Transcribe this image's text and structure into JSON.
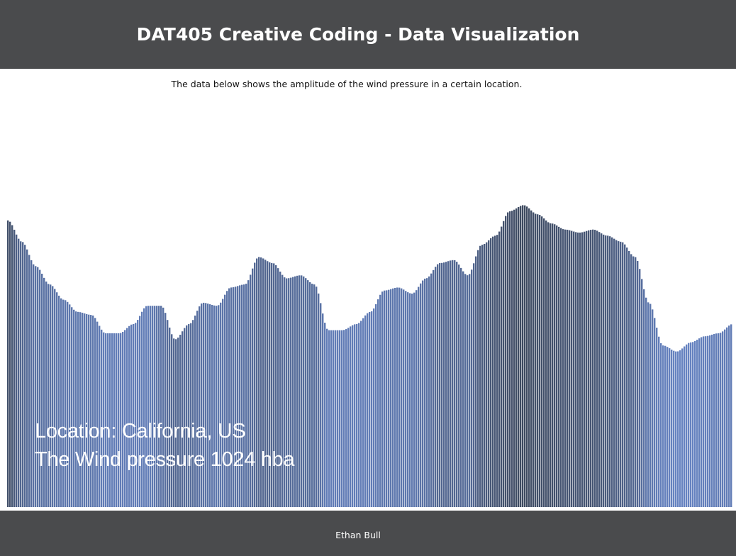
{
  "header": {
    "title": "DAT405 Creative Coding - Data Visualization"
  },
  "intro": {
    "text": "The data below shows the amplitude of the wind pressure in a certain location."
  },
  "overlay": {
    "location": "Location: California, US",
    "pressure": "The Wind pressure 1024 hba"
  },
  "footer": {
    "author": "Ethan Bull"
  },
  "colors": {
    "header_bg": "#4a4b4d",
    "footer_bg": "#4a4b4d",
    "wave_light": "#6582c0",
    "wave_dark": "#3e4a60"
  },
  "chart_data": {
    "type": "area",
    "values": [
      0.94,
      0.87,
      0.79,
      0.73,
      0.68,
      0.64,
      0.63,
      0.57,
      0.57,
      0.6,
      0.66,
      0.66,
      0.55,
      0.6,
      0.67,
      0.66,
      0.72,
      0.73,
      0.82,
      0.8,
      0.75,
      0.76,
      0.73,
      0.58,
      0.58,
      0.6,
      0.64,
      0.71,
      0.72,
      0.7,
      0.75,
      0.8,
      0.81,
      0.76,
      0.86,
      0.89,
      0.97,
      0.99,
      0.96,
      0.93,
      0.91,
      0.9,
      0.91,
      0.89,
      0.87,
      0.82,
      0.67,
      0.53,
      0.51,
      0.54,
      0.56,
      0.57,
      0.6
    ],
    "shade": [
      0.9,
      0.5,
      0.3,
      0.3,
      0.2,
      0.2,
      0.2,
      0.1,
      0.1,
      0.1,
      0.1,
      0.3,
      0.5,
      0.4,
      0.3,
      0.2,
      0.3,
      0.3,
      0.5,
      0.5,
      0.4,
      0.4,
      0.4,
      0.1,
      0.1,
      0.1,
      0.1,
      0.2,
      0.2,
      0.2,
      0.3,
      0.5,
      0.5,
      0.4,
      0.7,
      0.8,
      0.9,
      1.0,
      0.9,
      0.9,
      0.8,
      0.8,
      0.8,
      0.7,
      0.6,
      0.5,
      0.2,
      0.05,
      0.0,
      0.0,
      0.05,
      0.1,
      0.1
    ],
    "ylim": [
      0,
      1
    ],
    "grid": false,
    "legend": "none"
  }
}
